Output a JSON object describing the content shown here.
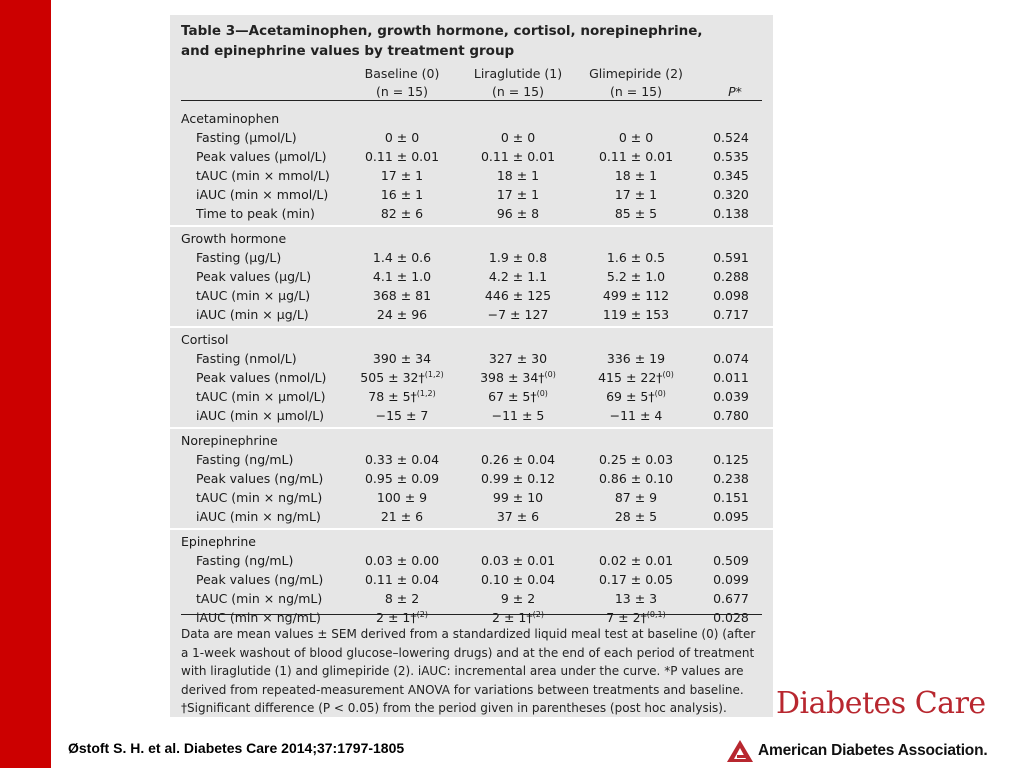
{
  "table": {
    "title_line1": "Table 3—Acetaminophen, growth hormone, cortisol, norepinephrine,",
    "title_line2": "and epinephrine values by treatment group",
    "columns": [
      {
        "label": "Baseline (0)",
        "n": "(n = 15)"
      },
      {
        "label": "Liraglutide (1)",
        "n": "(n = 15)"
      },
      {
        "label": "Glimepiride (2)",
        "n": "(n = 15)"
      },
      {
        "label": "P*"
      }
    ],
    "groups": [
      {
        "name": "Acetaminophen",
        "rows": [
          {
            "label": "Fasting (μmol/L)",
            "v": [
              "0 ± 0",
              "0 ± 0",
              "0 ± 0"
            ],
            "s": [
              "",
              "",
              ""
            ],
            "p": "0.524"
          },
          {
            "label": "Peak values (μmol/L)",
            "v": [
              "0.11 ± 0.01",
              "0.11 ± 0.01",
              "0.11 ± 0.01"
            ],
            "s": [
              "",
              "",
              ""
            ],
            "p": "0.535"
          },
          {
            "label": "tAUC (min × mmol/L)",
            "v": [
              "17 ± 1",
              "18 ± 1",
              "18 ± 1"
            ],
            "s": [
              "",
              "",
              ""
            ],
            "p": "0.345"
          },
          {
            "label": "iAUC (min × mmol/L)",
            "v": [
              "16 ± 1",
              "17 ± 1",
              "17 ± 1"
            ],
            "s": [
              "",
              "",
              ""
            ],
            "p": "0.320"
          },
          {
            "label": "Time to peak (min)",
            "v": [
              "82 ± 6",
              "96 ± 8",
              "85 ± 5"
            ],
            "s": [
              "",
              "",
              ""
            ],
            "p": "0.138"
          }
        ]
      },
      {
        "name": "Growth hormone",
        "rows": [
          {
            "label": "Fasting (μg/L)",
            "v": [
              "1.4 ± 0.6",
              "1.9 ± 0.8",
              "1.6 ± 0.5"
            ],
            "s": [
              "",
              "",
              ""
            ],
            "p": "0.591"
          },
          {
            "label": "Peak values (μg/L)",
            "v": [
              "4.1 ± 1.0",
              "4.2 ± 1.1",
              "5.2 ± 1.0"
            ],
            "s": [
              "",
              "",
              ""
            ],
            "p": "0.288"
          },
          {
            "label": "tAUC (min × μg/L)",
            "v": [
              "368 ± 81",
              "446 ± 125",
              "499 ± 112"
            ],
            "s": [
              "",
              "",
              ""
            ],
            "p": "0.098"
          },
          {
            "label": "iAUC (min × μg/L)",
            "v": [
              "24 ± 96",
              "−7 ± 127",
              "119 ± 153"
            ],
            "s": [
              "",
              "",
              ""
            ],
            "p": "0.717"
          }
        ]
      },
      {
        "name": "Cortisol",
        "rows": [
          {
            "label": "Fasting (nmol/L)",
            "v": [
              "390 ± 34",
              "327 ± 30",
              "336 ± 19"
            ],
            "s": [
              "",
              "",
              ""
            ],
            "p": "0.074"
          },
          {
            "label": "Peak values (nmol/L)",
            "v": [
              "505 ± 32†",
              "398 ± 34†",
              "415 ± 22†"
            ],
            "s": [
              "(1,2)",
              "(0)",
              "(0)"
            ],
            "p": "0.011"
          },
          {
            "label": "tAUC (min × μmol/L)",
            "v": [
              "78 ± 5†",
              "67 ± 5†",
              "69 ± 5†"
            ],
            "s": [
              "(1,2)",
              "(0)",
              "(0)"
            ],
            "p": "0.039"
          },
          {
            "label": "iAUC (min × μmol/L)",
            "v": [
              "−15 ± 7",
              "−11 ± 5",
              "−11 ± 4"
            ],
            "s": [
              "",
              "",
              ""
            ],
            "p": "0.780"
          }
        ]
      },
      {
        "name": "Norepinephrine",
        "rows": [
          {
            "label": "Fasting (ng/mL)",
            "v": [
              "0.33 ± 0.04",
              "0.26 ± 0.04",
              "0.25 ± 0.03"
            ],
            "s": [
              "",
              "",
              ""
            ],
            "p": "0.125"
          },
          {
            "label": "Peak values (ng/mL)",
            "v": [
              "0.95 ± 0.09",
              "0.99 ± 0.12",
              "0.86 ± 0.10"
            ],
            "s": [
              "",
              "",
              ""
            ],
            "p": "0.238"
          },
          {
            "label": "tAUC (min × ng/mL)",
            "v": [
              "100 ± 9",
              "99 ± 10",
              "87 ± 9"
            ],
            "s": [
              "",
              "",
              ""
            ],
            "p": "0.151"
          },
          {
            "label": "iAUC (min × ng/mL)",
            "v": [
              "21 ± 6",
              "37 ± 6",
              "28 ± 5"
            ],
            "s": [
              "",
              "",
              ""
            ],
            "p": "0.095"
          }
        ]
      },
      {
        "name": "Epinephrine",
        "rows": [
          {
            "label": "Fasting (ng/mL)",
            "v": [
              "0.03 ± 0.00",
              "0.03 ± 0.01",
              "0.02 ± 0.01"
            ],
            "s": [
              "",
              "",
              ""
            ],
            "p": "0.509"
          },
          {
            "label": "Peak values (ng/mL)",
            "v": [
              "0.11 ± 0.04",
              "0.10 ± 0.04",
              "0.17 ± 0.05"
            ],
            "s": [
              "",
              "",
              ""
            ],
            "p": "0.099"
          },
          {
            "label": "tAUC (min × ng/mL)",
            "v": [
              "8 ± 2",
              "9 ± 2",
              "13 ± 3"
            ],
            "s": [
              "",
              "",
              ""
            ],
            "p": "0.677"
          },
          {
            "label": "iAUC (min × ng/mL)",
            "v": [
              "2 ± 1†",
              "2 ± 1†",
              "7 ± 2†"
            ],
            "s": [
              "(2)",
              "(2)",
              "(0,1)"
            ],
            "p": "0.028"
          }
        ]
      }
    ],
    "footnote": "Data are mean values ± SEM derived from a standardized liquid meal test at baseline (0) (after a 1-week washout of blood glucose–lowering drugs) and at the end of each period of treatment with liraglutide (1) and glimepiride (2). iAUC: incremental area under the curve. *P values are derived from repeated-measurement ANOVA for variations between treatments and baseline. †Significant difference (P < 0.05) from the period given in parentheses (post hoc analysis)."
  },
  "citation": "Østoft S. H. et al. Diabetes Care 2014;37:1797-1805",
  "branding": {
    "journal": "Diabetes Care",
    "association": "American Diabetes Association."
  },
  "colors": {
    "accent_red": "#cc0000",
    "journal_red": "#b8272f",
    "panel_gray": "#e6e6e6"
  }
}
